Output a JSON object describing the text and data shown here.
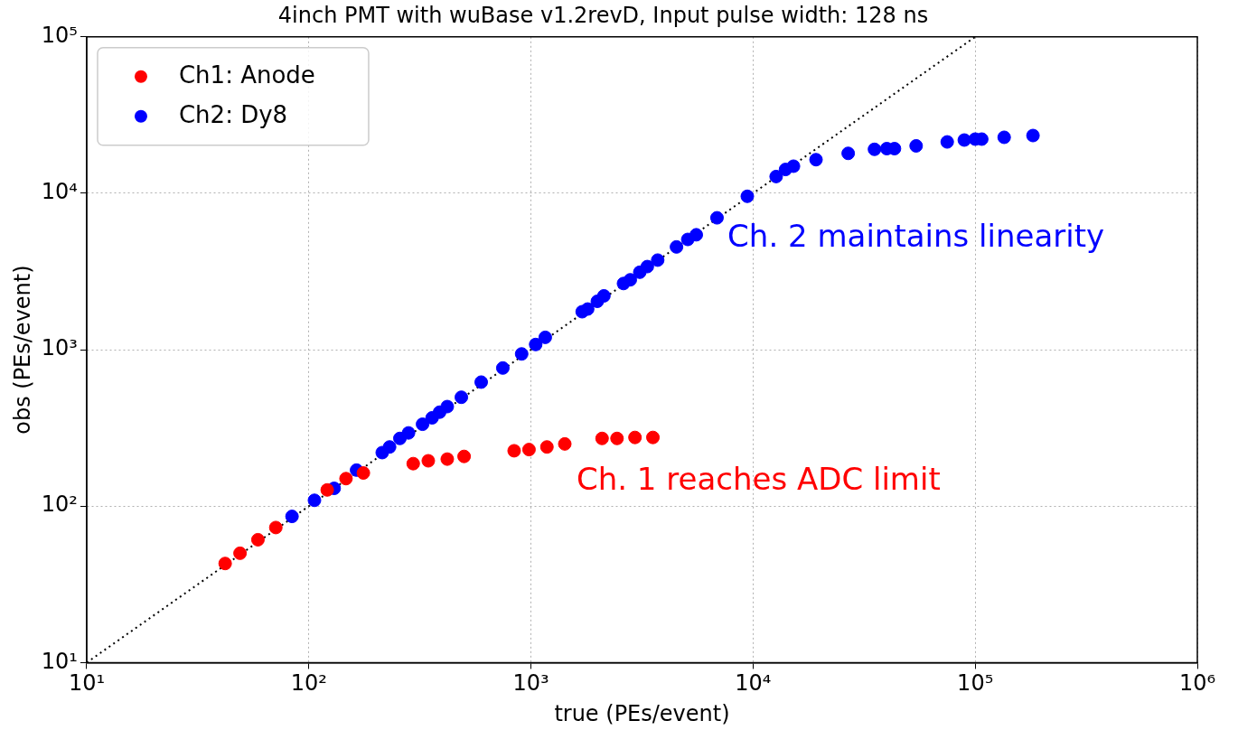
{
  "chart_data": {
    "type": "scatter",
    "title": "4inch PMT with wuBase v1.2revD, Input pulse width: 128 ns",
    "xlabel": "true (PEs/event)",
    "ylabel": "obs (PEs/event)",
    "log": "xy",
    "grid": true,
    "legend": "top left",
    "marker": "circle",
    "xlim": [
      10,
      1000000
    ],
    "ylim": [
      10,
      100000
    ],
    "xticks": [
      {
        "value": 10,
        "label": "10¹"
      },
      {
        "value": 100,
        "label": "10²"
      },
      {
        "value": 1000,
        "label": "10³"
      },
      {
        "value": 10000,
        "label": "10⁴"
      },
      {
        "value": 100000,
        "label": "10⁵"
      },
      {
        "value": 1000000,
        "label": "10⁶"
      }
    ],
    "yticks": [
      {
        "value": 10,
        "label": "10¹"
      },
      {
        "value": 100,
        "label": "10²"
      },
      {
        "value": 1000,
        "label": "10³"
      },
      {
        "value": 10000,
        "label": "10⁴"
      },
      {
        "value": 100000,
        "label": "10⁵"
      }
    ],
    "series": [
      {
        "name": "Ch1: Anode",
        "color": "#ff0000",
        "x": [
          42,
          49,
          59,
          71,
          121,
          147,
          176,
          295,
          345,
          420,
          500,
          840,
          980,
          1180,
          1420,
          2090,
          2440,
          2940,
          3540
        ],
        "values": [
          43,
          50,
          61,
          73,
          127,
          150,
          163,
          187,
          195,
          200,
          208,
          226,
          230,
          239,
          250,
          271,
          271,
          275,
          275
        ]
      },
      {
        "name": "Ch2: Dy8",
        "color": "#0000ff",
        "x": [
          84,
          106,
          130,
          164,
          214,
          231,
          257,
          281,
          325,
          359,
          388,
          420,
          486,
          597,
          747,
          908,
          1050,
          1160,
          1700,
          1800,
          1990,
          2130,
          2610,
          2800,
          3090,
          3340,
          3720,
          4520,
          5080,
          5550,
          6880,
          9420,
          12700,
          14000,
          15200,
          19200,
          26800,
          35200,
          40000,
          43300,
          54200,
          74800,
          89300,
          100000,
          107000,
          135000,
          182000
        ],
        "values": [
          86,
          109,
          130,
          170,
          220,
          239,
          271,
          294,
          334,
          367,
          399,
          433,
          497,
          621,
          764,
          940,
          1080,
          1200,
          1750,
          1820,
          2040,
          2210,
          2650,
          2800,
          3130,
          3400,
          3740,
          4540,
          5070,
          5430,
          6970,
          9570,
          12800,
          14200,
          14900,
          16400,
          18000,
          19100,
          19300,
          19300,
          20100,
          21300,
          21900,
          22200,
          22200,
          22800,
          23400
        ]
      },
      {
        "type": "line",
        "color": "#000000",
        "line_style": "dotted",
        "marker": "none",
        "x": [
          10,
          100000
        ],
        "values": [
          10,
          100000
        ]
      }
    ],
    "annotations": [
      "Ch. 1 reaches ADC limit",
      "Ch. 2 maintains linearity"
    ]
  }
}
